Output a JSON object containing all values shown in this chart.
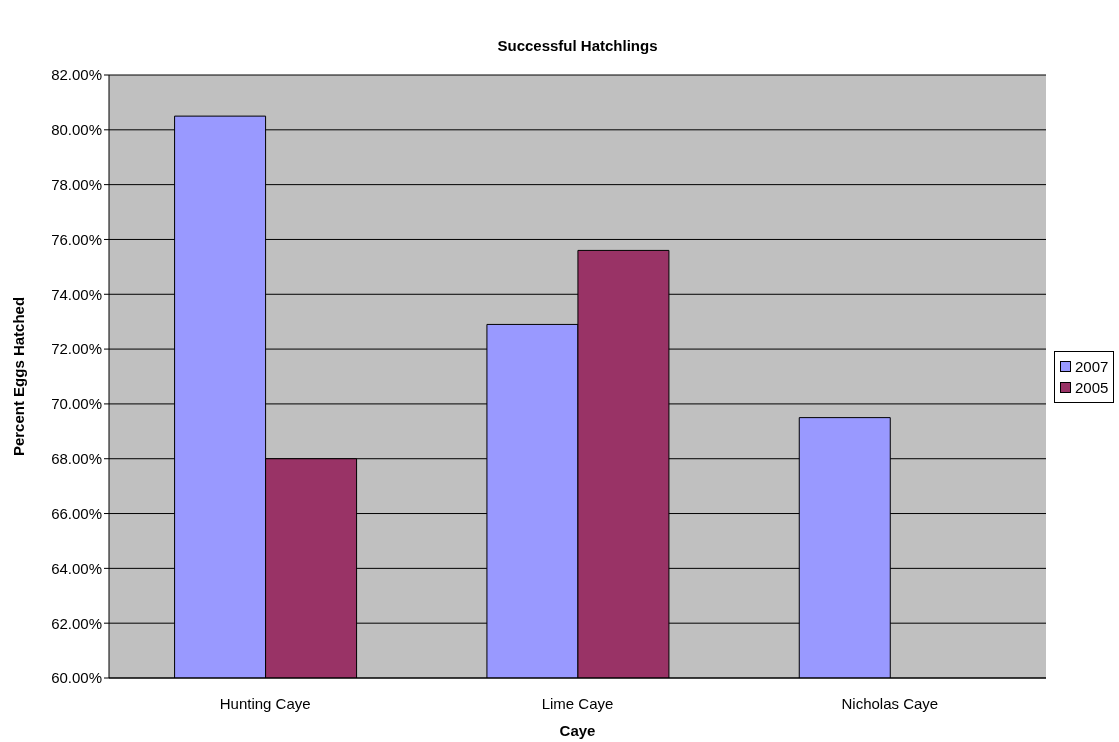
{
  "chart_data": {
    "type": "bar",
    "title": "Successful Hatchlings",
    "xlabel": "Caye",
    "ylabel": "Percent Eggs Hatched",
    "categories": [
      "Hunting Caye",
      "Lime Caye",
      "Nicholas Caye"
    ],
    "series": [
      {
        "name": "2007",
        "color": "#9999ff",
        "values": [
          80.5,
          72.9,
          69.5
        ]
      },
      {
        "name": "2005",
        "color": "#993366",
        "values": [
          68.0,
          75.6,
          null
        ]
      }
    ],
    "ylim": [
      60,
      82
    ],
    "yticks": [
      {
        "value": 60,
        "label": "60.00%"
      },
      {
        "value": 62,
        "label": "62.00%"
      },
      {
        "value": 64,
        "label": "64.00%"
      },
      {
        "value": 66,
        "label": "66.00%"
      },
      {
        "value": 68,
        "label": "68.00%"
      },
      {
        "value": 70,
        "label": "70.00%"
      },
      {
        "value": 72,
        "label": "72.00%"
      },
      {
        "value": 74,
        "label": "74.00%"
      },
      {
        "value": 76,
        "label": "76.00%"
      },
      {
        "value": 78,
        "label": "78.00%"
      },
      {
        "value": 80,
        "label": "80.00%"
      },
      {
        "value": 82,
        "label": "82.00%"
      }
    ],
    "grid": "y",
    "legend": "right"
  }
}
